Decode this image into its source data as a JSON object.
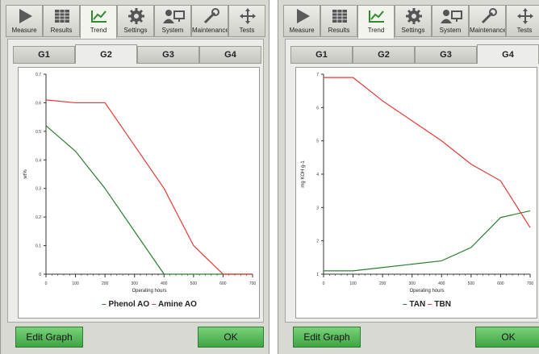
{
  "toolbar": [
    {
      "label": "Measure",
      "icon": "play-icon"
    },
    {
      "label": "Results",
      "icon": "table-icon"
    },
    {
      "label": "Trend",
      "icon": "trend-chart-icon"
    },
    {
      "label": "Settings",
      "icon": "gear-icon"
    },
    {
      "label": "System",
      "icon": "person-computer-icon"
    },
    {
      "label": "Maintenance",
      "icon": "wrench-icon"
    },
    {
      "label": "Tests",
      "icon": "move-arrows-icon"
    }
  ],
  "tabs": [
    "G1",
    "G2",
    "G3",
    "G4"
  ],
  "buttons": {
    "edit_graph": "Edit Graph",
    "ok": "OK"
  },
  "colors": {
    "green_series": "#2e7d32",
    "red_series": "#e53935",
    "button_green": "#4caf50"
  },
  "left_panel": {
    "active_tab": "G2",
    "chart_data": {
      "type": "line",
      "xlabel": "Operating hours",
      "ylabel": "wt%",
      "xlim": [
        0,
        700
      ],
      "ylim": [
        0,
        0.7
      ],
      "xticks": [
        "0",
        "100",
        "200",
        "300",
        "400",
        "500",
        "600",
        "700"
      ],
      "yticks": [
        "0",
        "0.1",
        "0.2",
        "0.3",
        "0.4",
        "0.5",
        "0.6",
        "0.7"
      ],
      "legend": "bottom-center",
      "series": [
        {
          "name": "Phenol AO",
          "color": "#2e7d32",
          "x": [
            0,
            100,
            200,
            300,
            400,
            500,
            600,
            700
          ],
          "y": [
            0.52,
            0.43,
            0.3,
            0.15,
            0,
            0,
            0,
            0
          ]
        },
        {
          "name": "Amine AO",
          "color": "#e53935",
          "x": [
            0,
            100,
            200,
            300,
            400,
            500,
            600,
            700
          ],
          "y": [
            0.61,
            0.6,
            0.6,
            0.45,
            0.3,
            0.1,
            0,
            0
          ]
        }
      ]
    }
  },
  "right_panel": {
    "active_tab": "G4",
    "chart_data": {
      "type": "line",
      "xlabel": "Operating hours",
      "ylabel": "mg KOH g-1",
      "xlim": [
        0,
        700
      ],
      "ylim": [
        1,
        7
      ],
      "xticks": [
        "0",
        "100",
        "200",
        "300",
        "400",
        "500",
        "600",
        "700"
      ],
      "yticks": [
        "1",
        "2",
        "3",
        "4",
        "5",
        "6",
        "7"
      ],
      "legend": "bottom-center",
      "series": [
        {
          "name": "TAN",
          "color": "#2e7d32",
          "x": [
            0,
            100,
            200,
            300,
            400,
            500,
            600,
            700
          ],
          "y": [
            1.1,
            1.1,
            1.2,
            1.3,
            1.4,
            1.8,
            2.7,
            2.9
          ]
        },
        {
          "name": "TBN",
          "color": "#e53935",
          "x": [
            0,
            100,
            200,
            300,
            400,
            500,
            600,
            700
          ],
          "y": [
            6.9,
            6.9,
            6.2,
            5.6,
            5.0,
            4.3,
            3.8,
            2.4
          ]
        }
      ]
    }
  }
}
